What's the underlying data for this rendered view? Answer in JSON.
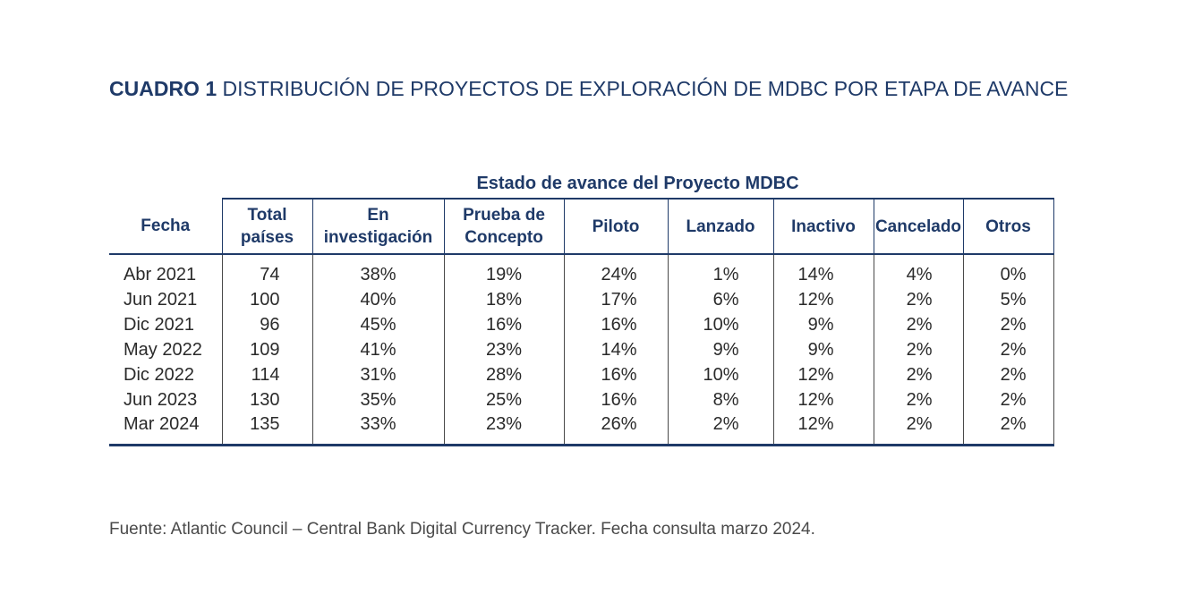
{
  "title": {
    "label": "CUADRO 1",
    "text": " DISTRIBUCIÓN DE PROYECTOS DE EXPLORACIÓN DE MDBC POR ETAPA DE AVANCE"
  },
  "table": {
    "group_header": "Estado de avance del Proyecto MDBC",
    "headers": {
      "fecha": "Fecha",
      "total_1": "Total",
      "total_2": "países",
      "investigacion_1": "En",
      "investigacion_2": "investigación",
      "prueba_1": "Prueba de",
      "prueba_2": "Concepto",
      "piloto": "Piloto",
      "lanzado": "Lanzado",
      "inactivo": "Inactivo",
      "cancelado": "Cancelado",
      "otros": "Otros"
    },
    "rows": [
      [
        "Abr 2021",
        "74",
        "38%",
        "19%",
        "24%",
        "1%",
        "14%",
        "4%",
        "0%"
      ],
      [
        "Jun 2021",
        "100",
        "40%",
        "18%",
        "17%",
        "6%",
        "12%",
        "2%",
        "5%"
      ],
      [
        "Dic 2021",
        "96",
        "45%",
        "16%",
        "16%",
        "10%",
        "9%",
        "2%",
        "2%"
      ],
      [
        "May 2022",
        "109",
        "41%",
        "23%",
        "14%",
        "9%",
        "9%",
        "2%",
        "2%"
      ],
      [
        "Dic 2022",
        "114",
        "31%",
        "28%",
        "16%",
        "10%",
        "12%",
        "2%",
        "2%"
      ],
      [
        "Jun 2023",
        "130",
        "35%",
        "25%",
        "16%",
        "8%",
        "12%",
        "2%",
        "2%"
      ],
      [
        "Mar 2024",
        "135",
        "33%",
        "23%",
        "26%",
        "2%",
        "12%",
        "2%",
        "2%"
      ]
    ]
  },
  "source": "Fuente: Atlantic Council – Central Bank Digital Currency Tracker. Fecha consulta marzo 2024."
}
